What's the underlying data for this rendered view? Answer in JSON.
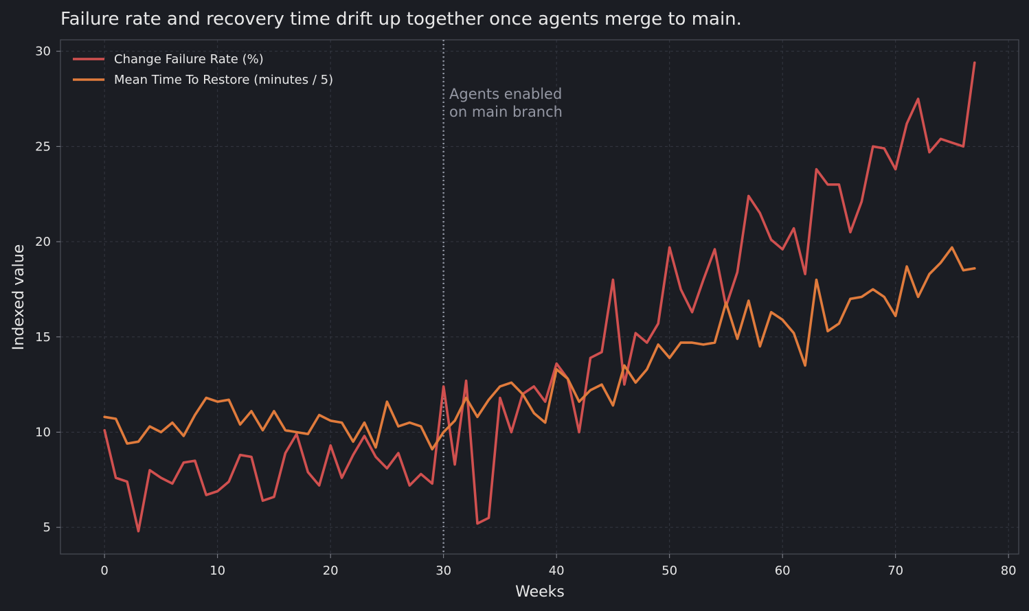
{
  "chart_data": {
    "type": "line",
    "title": "Failure rate and recovery time drift up together once agents merge to main.",
    "xlabel": "Weeks",
    "ylabel": "Indexed value",
    "xlim": [
      -3.9,
      80.9
    ],
    "ylim": [
      3.6,
      30.6
    ],
    "xticks": [
      0,
      10,
      20,
      30,
      40,
      50,
      60,
      70,
      80
    ],
    "yticks": [
      5,
      10,
      15,
      20,
      25,
      30
    ],
    "xtick_labels": [
      "0",
      "10",
      "20",
      "30",
      "40",
      "50",
      "60",
      "70",
      "80"
    ],
    "ytick_labels": [
      "5",
      "10",
      "15",
      "20",
      "25",
      "30"
    ],
    "grid": true,
    "legend_position": "top-left",
    "x": [
      0,
      1,
      2,
      3,
      4,
      5,
      6,
      7,
      8,
      9,
      10,
      11,
      12,
      13,
      14,
      15,
      16,
      17,
      18,
      19,
      20,
      21,
      22,
      23,
      24,
      25,
      26,
      27,
      28,
      29,
      30,
      31,
      32,
      33,
      34,
      35,
      36,
      37,
      38,
      39,
      40,
      41,
      42,
      43,
      44,
      45,
      46,
      47,
      48,
      49,
      50,
      51,
      52,
      53,
      54,
      55,
      56,
      57,
      58,
      59,
      60,
      61,
      62,
      63,
      64,
      65,
      66,
      67,
      68,
      69,
      70,
      71,
      72,
      73,
      74,
      75,
      76,
      77
    ],
    "series": [
      {
        "name": "Change Failure Rate (%)",
        "color": "#d0504f",
        "values": [
          10.1,
          7.6,
          7.4,
          4.8,
          8.0,
          7.6,
          7.3,
          8.4,
          8.5,
          6.7,
          6.9,
          7.4,
          8.8,
          8.7,
          6.4,
          6.6,
          8.9,
          9.9,
          7.9,
          7.2,
          9.3,
          7.6,
          8.8,
          9.8,
          8.7,
          8.1,
          8.9,
          7.2,
          7.8,
          7.3,
          12.4,
          8.3,
          12.7,
          5.2,
          5.5,
          11.8,
          10.0,
          12.0,
          12.4,
          11.6,
          13.6,
          12.8,
          10.0,
          13.9,
          14.2,
          18.0,
          12.5,
          15.2,
          14.7,
          15.7,
          19.7,
          17.5,
          16.3,
          18.0,
          19.6,
          16.6,
          18.4,
          22.4,
          21.5,
          20.1,
          19.6,
          20.7,
          18.3,
          23.8,
          23.0,
          23.0,
          20.5,
          22.1,
          25.0,
          24.9,
          23.8,
          26.2,
          27.5,
          24.7,
          25.4,
          25.2,
          25.0,
          29.4
        ]
      },
      {
        "name": "Mean Time To Restore (minutes / 5)",
        "color": "#e07b3c",
        "values": [
          10.8,
          10.7,
          9.4,
          9.5,
          10.3,
          10.0,
          10.5,
          9.8,
          10.9,
          11.8,
          11.6,
          11.7,
          10.4,
          11.1,
          10.1,
          11.1,
          10.1,
          10.0,
          9.9,
          10.9,
          10.6,
          10.5,
          9.5,
          10.5,
          9.2,
          11.6,
          10.3,
          10.5,
          10.3,
          9.1,
          10.0,
          10.6,
          11.8,
          10.8,
          11.7,
          12.4,
          12.6,
          12.0,
          11.0,
          10.5,
          13.3,
          12.8,
          11.6,
          12.2,
          12.5,
          11.4,
          13.5,
          12.6,
          13.3,
          14.6,
          13.9,
          14.7,
          14.7,
          14.6,
          14.7,
          16.8,
          14.9,
          16.9,
          14.5,
          16.3,
          15.9,
          15.2,
          13.5,
          18.0,
          15.3,
          15.7,
          17.0,
          17.1,
          17.5,
          17.1,
          16.1,
          18.7,
          17.1,
          18.3,
          18.9,
          19.7,
          18.5,
          18.6
        ]
      }
    ],
    "annotation": {
      "x": 30,
      "lines": [
        "Agents enabled",
        "on main branch"
      ]
    }
  }
}
